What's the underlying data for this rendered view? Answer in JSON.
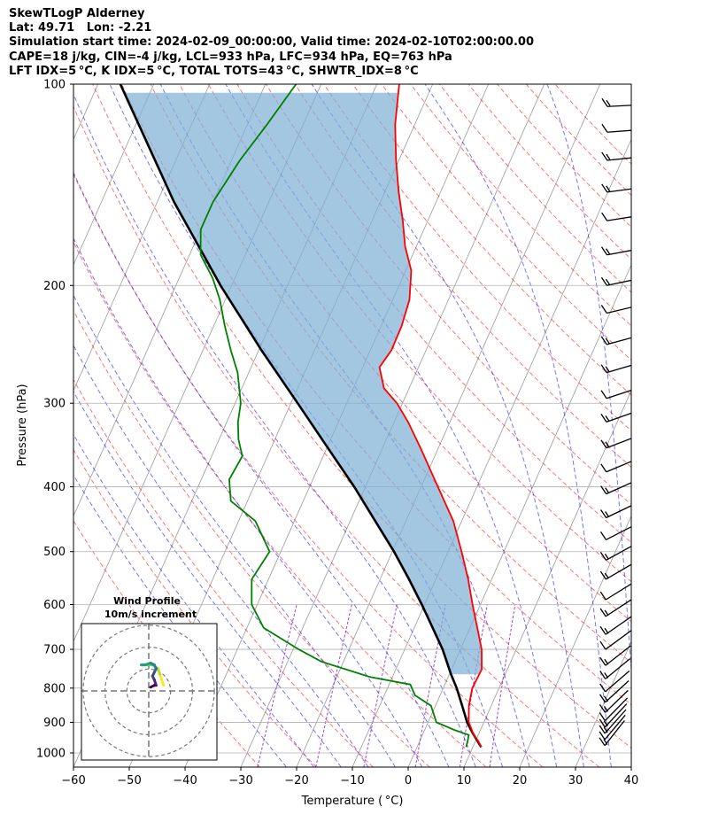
{
  "header": {
    "line1": "SkewTLogP Alderney",
    "line2": "Lat: 49.71   Lon: -2.21",
    "line3": "Simulation start time: 2024-02-09_00:00:00, Valid time: 2024-02-10T02:00:00.00",
    "line4": "CAPE=18 j/kg, CIN=-4 j/kg, LCL=933 hPa, LFC=934 hPa, EQ=763 hPa",
    "line5": "LFT IDX=5 °C, K IDX=5 °C, TOTAL TOTS=43 °C, SHWTR_IDX=8 °C"
  },
  "chart_data": {
    "type": "skewt",
    "xlabel": "Temperature ( °C)",
    "ylabel": "Pressure (hPa)",
    "xlim": [
      -60,
      40
    ],
    "ylim": [
      1050,
      100
    ],
    "x_ticks": [
      "−60",
      "−50",
      "−40",
      "−30",
      "−20",
      "−10",
      "0",
      "10",
      "20",
      "30",
      "40"
    ],
    "x_tick_values": [
      -60,
      -50,
      -40,
      -30,
      -20,
      -10,
      0,
      10,
      20,
      30,
      40
    ],
    "y_ticks": [
      "1000",
      "900",
      "800",
      "700",
      "600",
      "500",
      "400",
      "300",
      "200",
      "100"
    ],
    "y_tick_values": [
      1000,
      900,
      800,
      700,
      600,
      500,
      400,
      300,
      200,
      100
    ],
    "colors": {
      "temperature": "#ff0000",
      "dewpoint": "#008000",
      "parcel": "#000000",
      "cape_fill": "#7fb0d5",
      "dry_adiabat": "#ff0000",
      "moist_adiabat": "#0000ff",
      "mixing_ratio": "#8000c0",
      "isotherm": "#999999"
    },
    "temperature": [
      {
        "p": 980,
        "t": 11.5
      },
      {
        "p": 960,
        "t": 10.5
      },
      {
        "p": 940,
        "t": 9.2
      },
      {
        "p": 900,
        "t": 7.3
      },
      {
        "p": 850,
        "t": 6.0
      },
      {
        "p": 800,
        "t": 5.2
      },
      {
        "p": 750,
        "t": 5.4
      },
      {
        "p": 700,
        "t": 3.8
      },
      {
        "p": 650,
        "t": 1.3
      },
      {
        "p": 600,
        "t": -1.4
      },
      {
        "p": 550,
        "t": -4.2
      },
      {
        "p": 500,
        "t": -7.6
      },
      {
        "p": 450,
        "t": -11.5
      },
      {
        "p": 400,
        "t": -17.0
      },
      {
        "p": 350,
        "t": -23.2
      },
      {
        "p": 320,
        "t": -27.5
      },
      {
        "p": 300,
        "t": -31.0
      },
      {
        "p": 285,
        "t": -34.5
      },
      {
        "p": 265,
        "t": -37.0
      },
      {
        "p": 250,
        "t": -36.2
      },
      {
        "p": 230,
        "t": -36.3
      },
      {
        "p": 210,
        "t": -37.0
      },
      {
        "p": 190,
        "t": -39.0
      },
      {
        "p": 175,
        "t": -42.0
      },
      {
        "p": 160,
        "t": -44.5
      },
      {
        "p": 145,
        "t": -47.5
      },
      {
        "p": 130,
        "t": -50.5
      },
      {
        "p": 115,
        "t": -53.5
      },
      {
        "p": 100,
        "t": -56.0
      }
    ],
    "dewpoint": [
      {
        "p": 980,
        "t": 8.8
      },
      {
        "p": 960,
        "t": 8.6
      },
      {
        "p": 940,
        "t": 8.3
      },
      {
        "p": 925,
        "t": 5.5
      },
      {
        "p": 900,
        "t": 1.5
      },
      {
        "p": 850,
        "t": -0.8
      },
      {
        "p": 820,
        "t": -4.5
      },
      {
        "p": 790,
        "t": -6.2
      },
      {
        "p": 770,
        "t": -14.0
      },
      {
        "p": 730,
        "t": -24.0
      },
      {
        "p": 700,
        "t": -29.0
      },
      {
        "p": 650,
        "t": -37.0
      },
      {
        "p": 600,
        "t": -41.0
      },
      {
        "p": 550,
        "t": -43.0
      },
      {
        "p": 500,
        "t": -42.0
      },
      {
        "p": 450,
        "t": -47.0
      },
      {
        "p": 420,
        "t": -53.0
      },
      {
        "p": 390,
        "t": -55.0
      },
      {
        "p": 360,
        "t": -54.5
      },
      {
        "p": 340,
        "t": -56.5
      },
      {
        "p": 320,
        "t": -58.0
      },
      {
        "p": 300,
        "t": -59.0
      },
      {
        "p": 270,
        "t": -62.0
      },
      {
        "p": 250,
        "t": -65.0
      },
      {
        "p": 230,
        "t": -68.0
      },
      {
        "p": 210,
        "t": -71.0
      },
      {
        "p": 195,
        "t": -74.0
      },
      {
        "p": 180,
        "t": -78.0
      },
      {
        "p": 165,
        "t": -80.0
      },
      {
        "p": 150,
        "t": -80.0
      },
      {
        "p": 130,
        "t": -78.5
      },
      {
        "p": 115,
        "t": -76.5
      },
      {
        "p": 100,
        "t": -74.5
      }
    ],
    "parcel": [
      {
        "p": 980,
        "t": 11.5
      },
      {
        "p": 933,
        "t": 8.8
      },
      {
        "p": 900,
        "t": 7.0
      },
      {
        "p": 850,
        "t": 4.8
      },
      {
        "p": 800,
        "t": 2.4
      },
      {
        "p": 763,
        "t": 0.3
      },
      {
        "p": 700,
        "t": -3.2
      },
      {
        "p": 650,
        "t": -6.7
      },
      {
        "p": 600,
        "t": -10.5
      },
      {
        "p": 550,
        "t": -14.8
      },
      {
        "p": 500,
        "t": -19.7
      },
      {
        "p": 450,
        "t": -25.5
      },
      {
        "p": 400,
        "t": -32.0
      },
      {
        "p": 350,
        "t": -39.8
      },
      {
        "p": 300,
        "t": -48.8
      },
      {
        "p": 250,
        "t": -59.5
      },
      {
        "p": 200,
        "t": -72.0
      },
      {
        "p": 150,
        "t": -87.0
      },
      {
        "p": 100,
        "t": -106.0
      }
    ],
    "wind_barbs_pressure": [
      975,
      955,
      935,
      915,
      895,
      870,
      840,
      810,
      775,
      740,
      700,
      665,
      625,
      590,
      550,
      515,
      480,
      445,
      410,
      380,
      350,
      320,
      295,
      270,
      245,
      220,
      200,
      180,
      160,
      145,
      130,
      118,
      108
    ],
    "hodograph": {
      "title": "Wind Profile",
      "subtitle": "10m/s increment",
      "points": [
        {
          "u": 8,
          "v": 3
        },
        {
          "u": 7,
          "v": 6
        },
        {
          "u": 6,
          "v": 9
        },
        {
          "u": 5,
          "v": 12
        },
        {
          "u": 2,
          "v": 14
        },
        {
          "u": -1,
          "v": 14
        },
        {
          "u": -3,
          "v": 14
        },
        {
          "u": -4,
          "v": 14
        },
        {
          "u": -2,
          "v": 14
        },
        {
          "u": 1,
          "v": 15
        },
        {
          "u": 3,
          "v": 14
        },
        {
          "u": 4,
          "v": 12
        },
        {
          "u": 3,
          "v": 10
        },
        {
          "u": 2,
          "v": 8
        },
        {
          "u": 3,
          "v": 6
        },
        {
          "u": 4,
          "v": 3
        },
        {
          "u": 3,
          "v": 3
        },
        {
          "u": 1,
          "v": 2
        }
      ]
    }
  }
}
